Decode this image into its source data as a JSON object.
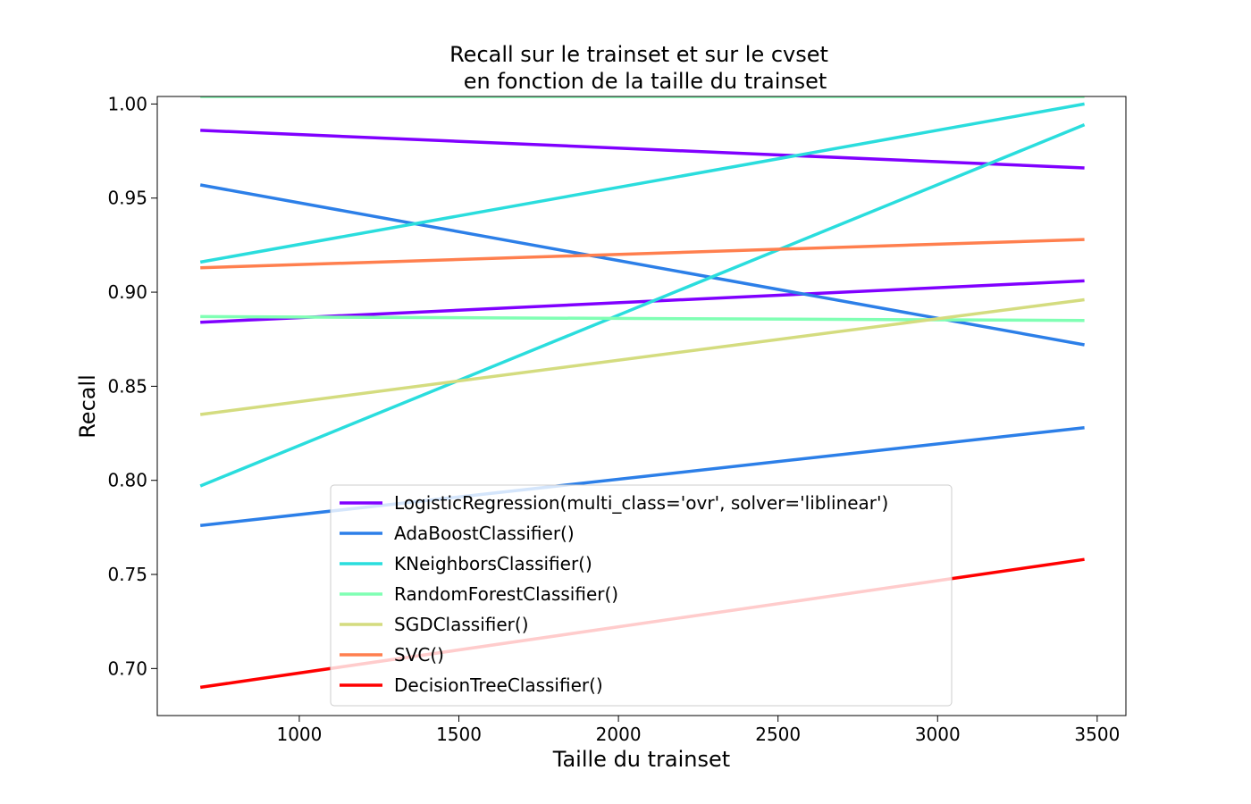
{
  "chart_data": {
    "type": "line",
    "title_line1": "Recall sur le trainset et sur le cvset",
    "title_line2": "en fonction de la taille du trainset",
    "xlabel": "Taille du trainset",
    "ylabel": "Recall",
    "xlim": [
      555,
      3590
    ],
    "ylim": [
      0.675,
      1.004
    ],
    "xticks": [
      1000,
      1500,
      2000,
      2500,
      3000,
      3500
    ],
    "xtick_labels": [
      "1000",
      "1500",
      "2000",
      "2500",
      "3000",
      "3500"
    ],
    "yticks": [
      0.7,
      0.75,
      0.8,
      0.85,
      0.9,
      0.95,
      1.0
    ],
    "ytick_labels": [
      "0.70",
      "0.75",
      "0.80",
      "0.85",
      "0.90",
      "0.95",
      "1.00"
    ],
    "grid": false,
    "legend_position": "lower-center",
    "series": [
      {
        "name": "LogisticRegression(multi_class='ovr', solver='liblinear')",
        "color": "#8000ff",
        "curves": [
          {
            "x": [
              690,
              3460
            ],
            "y": [
              0.986,
              0.966
            ]
          },
          {
            "x": [
              690,
              3460
            ],
            "y": [
              0.884,
              0.906
            ]
          }
        ]
      },
      {
        "name": "AdaBoostClassifier()",
        "color": "#2c7fe8",
        "curves": [
          {
            "x": [
              690,
              3460
            ],
            "y": [
              0.957,
              0.872
            ]
          },
          {
            "x": [
              690,
              3460
            ],
            "y": [
              0.776,
              0.828
            ]
          }
        ]
      },
      {
        "name": "KNeighborsClassifier()",
        "color": "#2adddd",
        "curves": [
          {
            "x": [
              690,
              3460
            ],
            "y": [
              0.916,
              1.0
            ]
          },
          {
            "x": [
              690,
              3460
            ],
            "y": [
              0.797,
              0.989
            ]
          }
        ]
      },
      {
        "name": "RandomForestClassifier()",
        "color": "#80ffb4",
        "curves": [
          {
            "x": [
              690,
              3460
            ],
            "y": [
              1.004,
              1.004
            ]
          },
          {
            "x": [
              690,
              3460
            ],
            "y": [
              0.887,
              0.885
            ]
          }
        ]
      },
      {
        "name": "SGDClassifier()",
        "color": "#d4dc7f",
        "curves": [
          {
            "x": [
              690,
              3460
            ],
            "y": [
              0.835,
              0.896
            ]
          }
        ]
      },
      {
        "name": "SVC()",
        "color": "#ff7f4e",
        "curves": [
          {
            "x": [
              690,
              3460
            ],
            "y": [
              0.913,
              0.928
            ]
          }
        ]
      },
      {
        "name": "DecisionTreeClassifier()",
        "color": "#ff0000",
        "curves": [
          {
            "x": [
              690,
              3460
            ],
            "y": [
              0.69,
              0.758
            ]
          }
        ]
      }
    ]
  }
}
